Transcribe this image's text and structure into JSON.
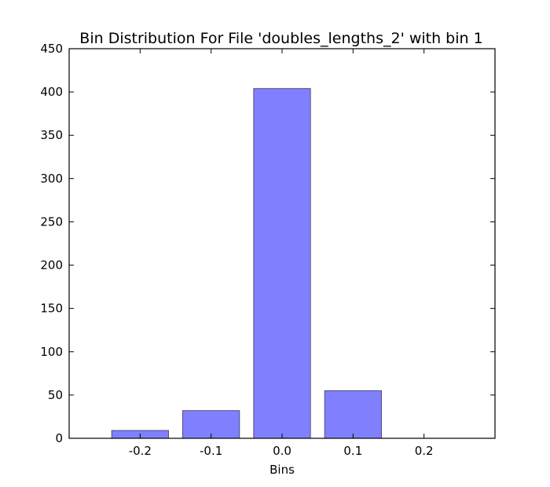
{
  "chart_data": {
    "type": "bar",
    "title": "Bin Distribution For File 'doubles_lengths_2' with bin 1",
    "xlabel": "Bins",
    "ylabel": "",
    "categories": [
      -0.2,
      -0.1,
      0.0,
      0.1,
      0.2
    ],
    "values": [
      9,
      32,
      404,
      55,
      0
    ],
    "xlim": [
      -0.3,
      0.3
    ],
    "ylim": [
      0,
      450
    ],
    "bar_width": 0.08,
    "xticks": [
      "-0.2",
      "-0.1",
      "0.0",
      "0.1",
      "0.2"
    ],
    "yticks": [
      "0",
      "50",
      "100",
      "150",
      "200",
      "250",
      "300",
      "350",
      "400",
      "450"
    ],
    "ytick_values": [
      0,
      50,
      100,
      150,
      200,
      250,
      300,
      350,
      400,
      450
    ],
    "bar_color": "#8080ff",
    "bar_edge_color": "#4d4d80",
    "grid": false,
    "legend": "none"
  }
}
